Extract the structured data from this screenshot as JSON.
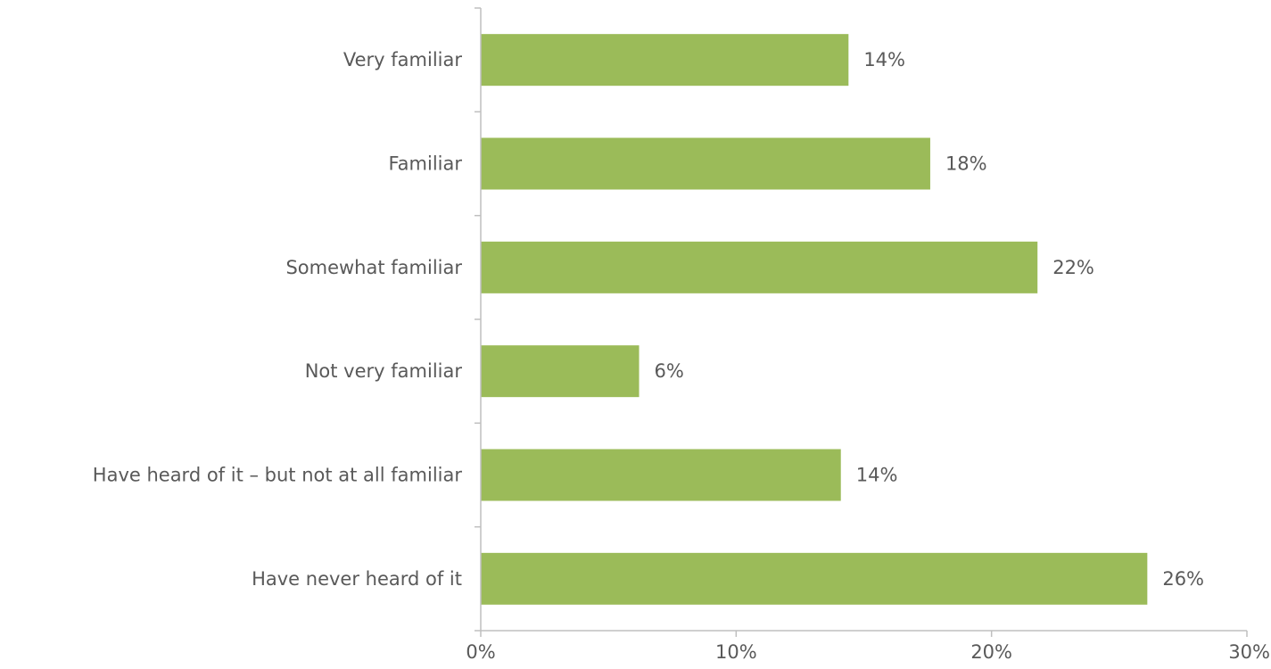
{
  "chart_data": {
    "type": "bar",
    "orientation": "horizontal",
    "categories": [
      "Very familiar",
      "Familiar",
      "Somewhat familiar",
      "Not very familiar",
      "Have heard of it – but not at all familiar",
      "Have never heard of it"
    ],
    "values": [
      14.4,
      17.6,
      21.8,
      6.2,
      14.1,
      26.1
    ],
    "value_labels": [
      "14%",
      "18%",
      "22%",
      "6%",
      "14%",
      "26%"
    ],
    "x_ticks": [
      "0%",
      "10%",
      "20%",
      "30%"
    ],
    "xlim": [
      0,
      30
    ],
    "title": "",
    "xlabel": "",
    "ylabel": "",
    "grid": false,
    "legend": "none",
    "bar_color": "#9BBB59",
    "axis_color": "#BFBFBF",
    "text_color": "#595959"
  }
}
